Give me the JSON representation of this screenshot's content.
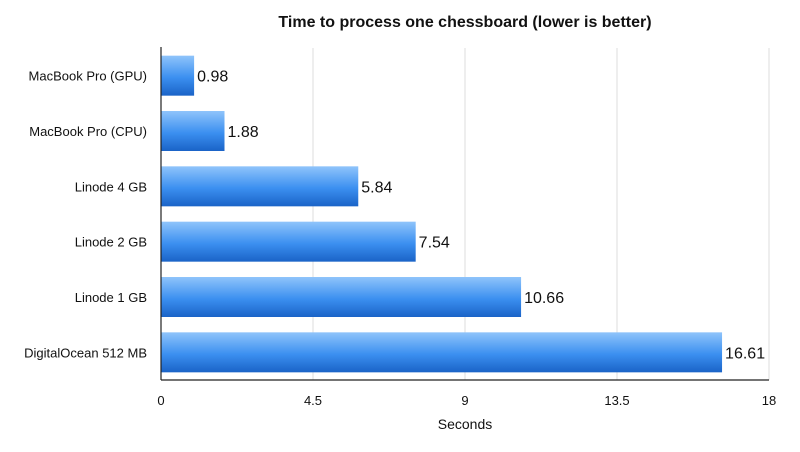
{
  "chart_data": {
    "type": "bar",
    "orientation": "horizontal",
    "title": "Time to process one chessboard (lower is better)",
    "xlabel": "Seconds",
    "ylabel": "",
    "categories": [
      "MacBook Pro (GPU)",
      "MacBook Pro (CPU)",
      "Linode 4 GB",
      "Linode 2 GB",
      "Linode 1 GB",
      "DigitalOcean 512 MB"
    ],
    "values": [
      0.98,
      1.88,
      5.84,
      7.54,
      10.66,
      16.61
    ],
    "data_labels": [
      "0.98",
      "1.88",
      "5.84",
      "7.54",
      "10.66",
      "16.61"
    ],
    "xlim": [
      0,
      18
    ],
    "x_ticks": [
      0,
      4.5,
      9,
      13.5,
      18
    ],
    "x_tick_labels": [
      "0",
      "4.5",
      "9",
      "13.5",
      "18"
    ],
    "grid": "vertical",
    "legend": "none",
    "colors": {
      "bar_light": "#8fc4fb",
      "bar_mid": "#3b8ff0",
      "bar_dark": "#1a63c7",
      "grid": "#dcdcdc",
      "axis": "#222222"
    }
  }
}
